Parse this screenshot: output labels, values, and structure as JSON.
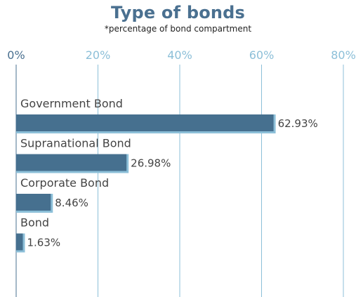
{
  "chart_data": {
    "type": "bar",
    "orientation": "horizontal",
    "title": "Type of bonds",
    "subtitle": "*percentage of bond compartment",
    "categories": [
      "Government Bond",
      "Supranational Bond",
      "Corporate Bond",
      "Bond"
    ],
    "values": [
      62.93,
      26.98,
      8.46,
      1.63
    ],
    "value_labels": [
      "62.93%",
      "26.98%",
      "8.46%",
      "1.63%"
    ],
    "xlim": [
      0,
      80
    ],
    "xticks": [
      0,
      20,
      40,
      60,
      80
    ],
    "xtick_labels": [
      "0%",
      "20%",
      "40%",
      "60%",
      "80%"
    ],
    "grid": true,
    "axis_position": "top",
    "colors": {
      "bar": "#46708f",
      "bar_shadow": "#8cbfd8",
      "grid": "#8cbfd8",
      "title": "#4a7090"
    }
  }
}
